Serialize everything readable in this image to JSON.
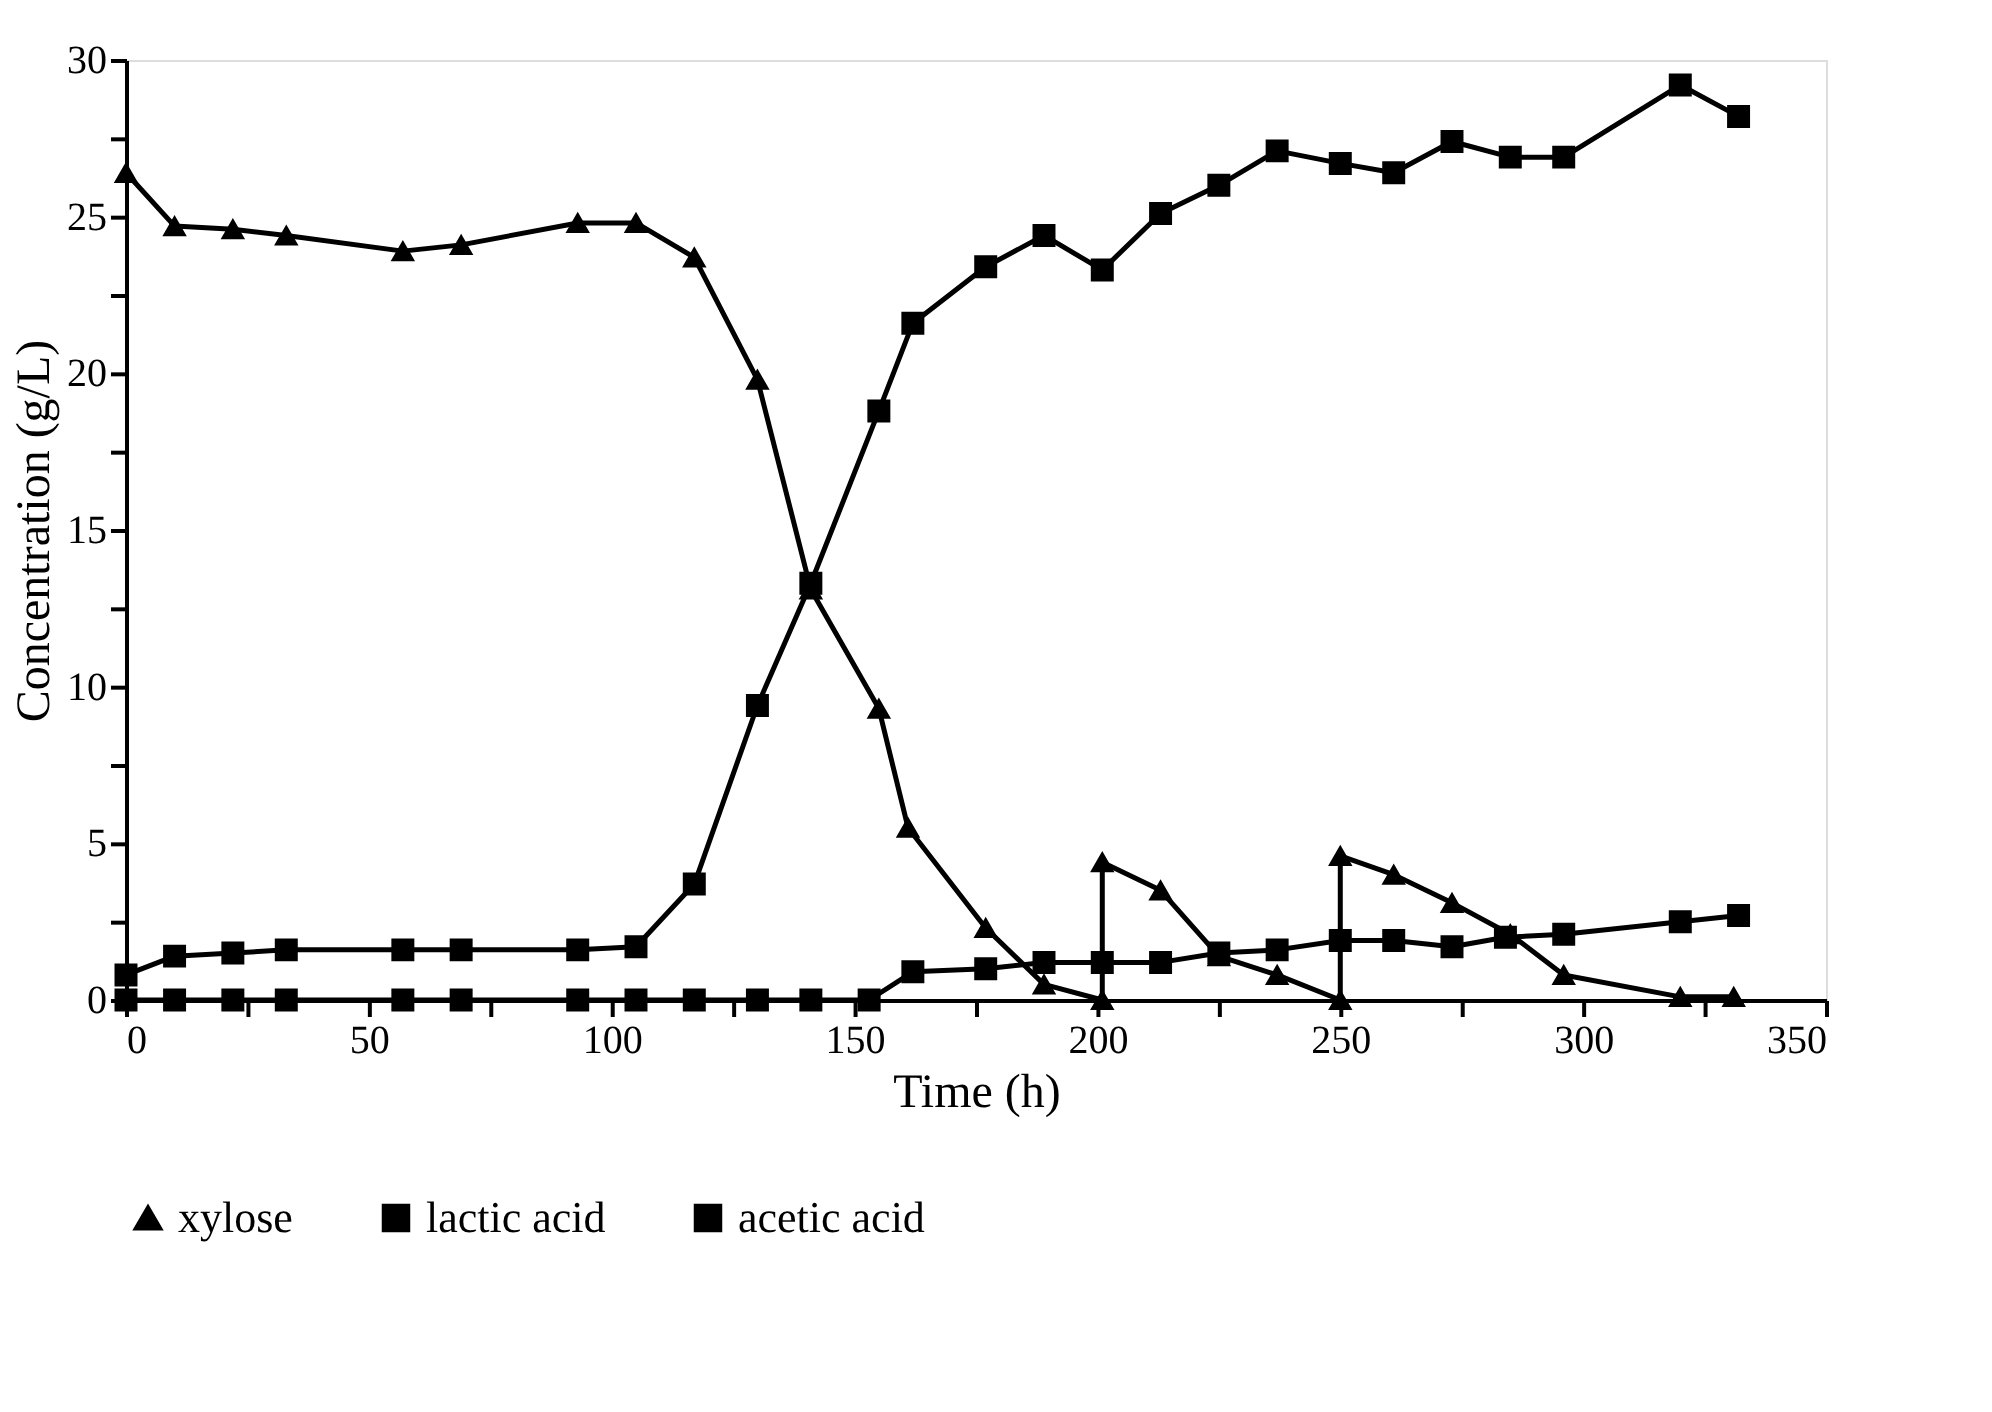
{
  "chart_data": {
    "type": "line",
    "xlabel": "Time (h)",
    "ylabel": "Concentration (g/L)",
    "xlim": [
      0,
      350
    ],
    "ylim": [
      0,
      30
    ],
    "xticks": [
      0,
      {
        "value": 25,
        "label": null
      },
      50,
      {
        "value": 75,
        "label": null
      },
      100,
      {
        "value": 125,
        "label": null
      },
      150,
      {
        "value": 175,
        "label": null
      },
      200,
      {
        "value": 225,
        "label": null
      },
      250,
      {
        "value": 275,
        "label": null
      },
      300,
      {
        "value": 325,
        "label": null
      },
      350
    ],
    "yticks": [
      0,
      {
        "value": 2.5,
        "label": null
      },
      5,
      {
        "value": 7.5,
        "label": null
      },
      10,
      {
        "value": 12.5,
        "label": null
      },
      15,
      {
        "value": 17.5,
        "label": null
      },
      20,
      {
        "value": 22.5,
        "label": null
      },
      25,
      {
        "value": 27.5,
        "label": null
      },
      30
    ],
    "grid": false,
    "legend": "bottom",
    "line_style": "solid",
    "series": [
      {
        "name": "xylose",
        "color": "#000000",
        "marker": "triangle",
        "x": [
          0,
          10,
          22,
          33,
          57,
          69,
          93,
          105,
          117,
          130,
          141,
          155,
          161,
          177,
          189,
          201,
          201,
          213,
          225,
          237,
          250,
          250,
          261,
          273,
          285,
          296,
          320,
          331
        ],
        "values": [
          26.4,
          24.7,
          24.6,
          24.4,
          23.9,
          24.1,
          24.8,
          24.8,
          23.7,
          19.8,
          13.1,
          9.3,
          5.5,
          2.3,
          0.5,
          0,
          4.4,
          3.5,
          1.4,
          0.8,
          0,
          4.6,
          4.0,
          3.1,
          2.1,
          0.8,
          0.1,
          0.1
        ]
      },
      {
        "name": "lactic acid",
        "color": "#000000",
        "marker": "square",
        "x": [
          0,
          10,
          22,
          33,
          57,
          69,
          93,
          105,
          117,
          130,
          141,
          155,
          162,
          177,
          189,
          201,
          213,
          225,
          237,
          250,
          261,
          273,
          285,
          296,
          320,
          332
        ],
        "values": [
          0.8,
          1.4,
          1.5,
          1.6,
          1.6,
          1.6,
          1.6,
          1.7,
          3.7,
          9.4,
          13.3,
          18.8,
          21.6,
          23.4,
          24.4,
          23.3,
          25.1,
          26.0,
          27.1,
          26.7,
          26.4,
          27.4,
          26.9,
          26.9,
          29.2,
          28.2
        ]
      },
      {
        "name": "acetic acid",
        "color": "#000000",
        "marker": "square",
        "x": [
          0,
          10,
          22,
          33,
          57,
          69,
          93,
          105,
          117,
          130,
          141,
          153,
          162,
          177,
          189,
          201,
          213,
          225,
          237,
          250,
          261,
          273,
          284,
          296,
          320,
          332
        ],
        "values": [
          0,
          0,
          0,
          0,
          0,
          0,
          0,
          0,
          0,
          0,
          0,
          0,
          0.9,
          1.0,
          1.2,
          1.2,
          1.2,
          1.5,
          1.6,
          1.9,
          1.9,
          1.7,
          2.0,
          2.1,
          2.5,
          2.7
        ]
      }
    ]
  }
}
